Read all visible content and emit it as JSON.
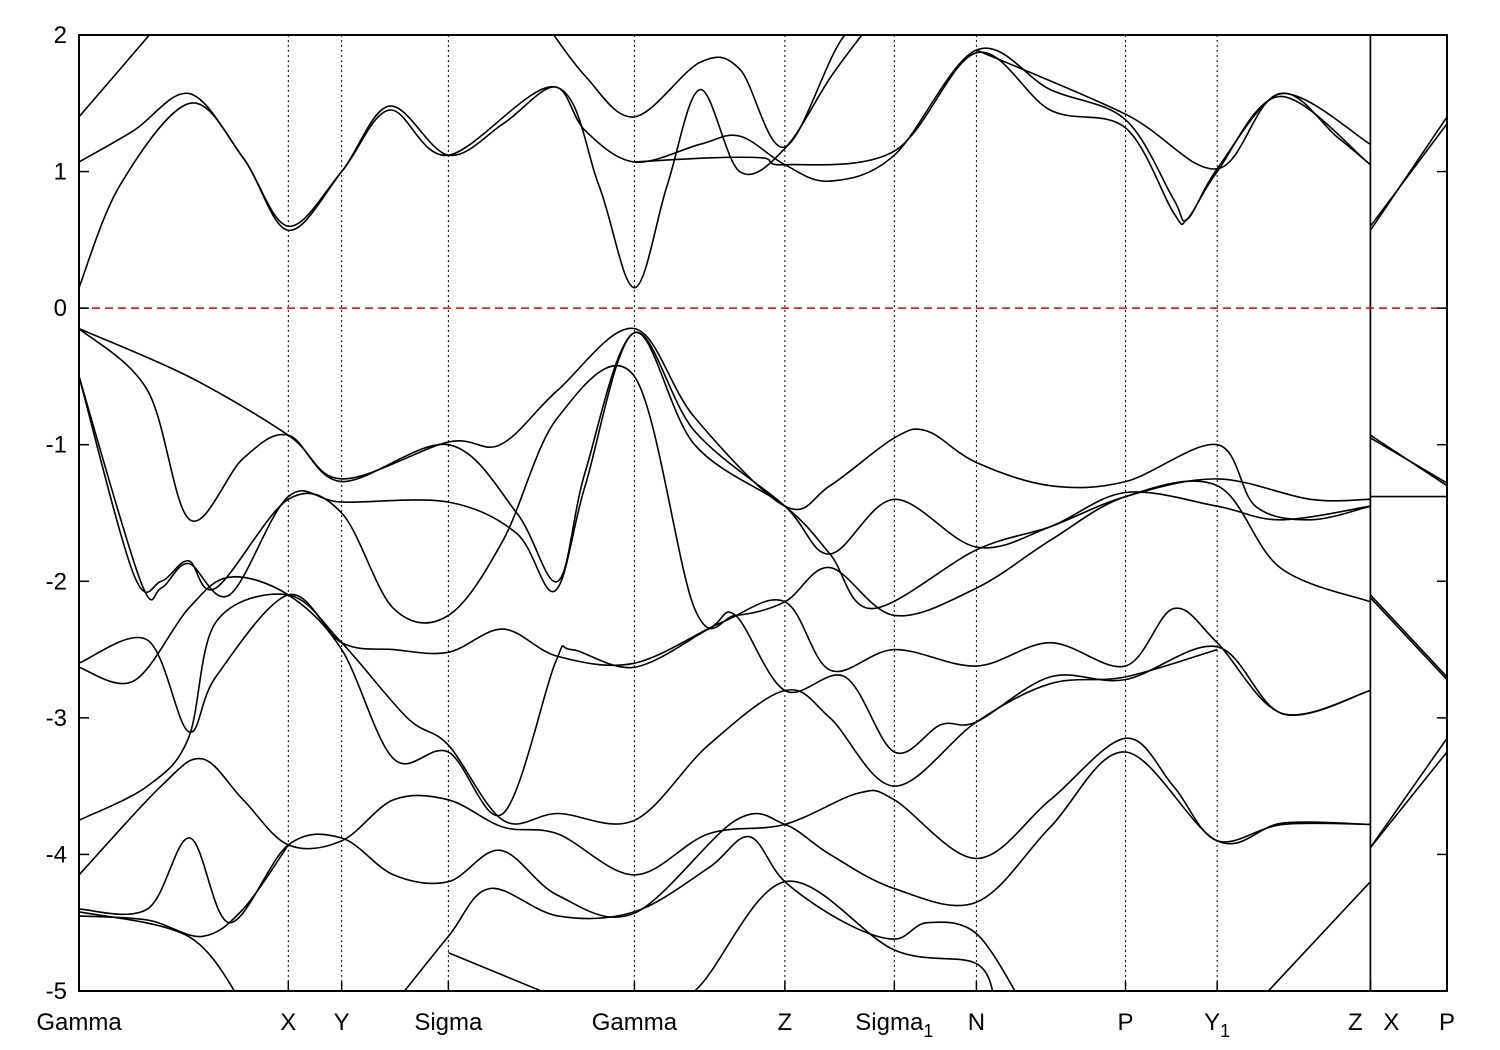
{
  "chart_data": {
    "type": "line",
    "title": "",
    "xlabel": "",
    "ylabel": "",
    "xlim": [
      0,
      10
    ],
    "ylim": [
      -5,
      2
    ],
    "yticks": [
      -5,
      -4,
      -3,
      -2,
      -1,
      0,
      1,
      2
    ],
    "ytick_labels": [
      "-5",
      "-4",
      "-3",
      "-2",
      "-1",
      "0",
      "1",
      "2"
    ],
    "grid": "dotted vertical lines at high-symmetry points",
    "fermi_level": {
      "value": 0,
      "color": "#e00000",
      "style": "dashed"
    },
    "band_color": "#000000",
    "kpoints": [
      {
        "k": 0,
        "label": "Gamma",
        "sub": ""
      },
      {
        "k": 1.53,
        "label": "X",
        "sub": ""
      },
      {
        "k": 1.92,
        "label": "Y",
        "sub": ""
      },
      {
        "k": 2.7,
        "label": "Sigma",
        "sub": ""
      },
      {
        "k": 4.06,
        "label": "Gamma",
        "sub": ""
      },
      {
        "k": 5.16,
        "label": "Z",
        "sub": ""
      },
      {
        "k": 5.96,
        "label": "Sigma",
        "sub": "1"
      },
      {
        "k": 6.56,
        "label": "N",
        "sub": ""
      },
      {
        "k": 7.65,
        "label": "P",
        "sub": ""
      },
      {
        "k": 8.32,
        "label": "Y",
        "sub": "1"
      },
      {
        "k": 9.44,
        "label": "Z",
        "sub": ""
      },
      {
        "k": 9.44,
        "label": "X",
        "sub": ""
      },
      {
        "k": 10,
        "label": "P",
        "sub": ""
      }
    ],
    "path_break_k": 9.44,
    "bands": [
      [
        [
          0,
          0.15
        ],
        [
          0.3,
          0.9
        ],
        [
          0.81,
          1.5
        ],
        [
          1.2,
          1.1
        ],
        [
          1.53,
          0.57
        ],
        [
          1.92,
          1.0
        ],
        [
          2.27,
          1.48
        ],
        [
          2.7,
          1.12
        ],
        [
          3.1,
          1.35
        ],
        [
          3.48,
          1.62
        ],
        [
          3.7,
          1.3
        ],
        [
          4.06,
          1.07
        ],
        [
          4.54,
          1.2
        ],
        [
          4.83,
          1.26
        ],
        [
          5.16,
          1.05
        ],
        [
          5.49,
          0.93
        ],
        [
          5.96,
          1.12
        ],
        [
          6.56,
          1.89
        ],
        [
          7.1,
          1.6
        ],
        [
          7.65,
          1.38
        ],
        [
          8.0,
          0.8
        ],
        [
          8.1,
          0.65
        ],
        [
          8.32,
          1.02
        ],
        [
          8.78,
          1.57
        ],
        [
          9.2,
          1.25
        ],
        [
          9.44,
          1.05
        ],
        null,
        [
          9.44,
          0.57
        ],
        [
          10,
          1.4
        ]
      ],
      [
        [
          0,
          1.07
        ],
        [
          0.4,
          1.3
        ],
        [
          0.81,
          1.57
        ],
        [
          1.2,
          1.1
        ],
        [
          1.53,
          0.6
        ],
        [
          1.92,
          1.0
        ],
        [
          2.27,
          1.45
        ],
        [
          2.7,
          1.12
        ],
        [
          3.48,
          1.62
        ],
        [
          3.8,
          0.9
        ],
        [
          4.06,
          0.15
        ],
        [
          4.3,
          0.9
        ],
        [
          4.54,
          1.6
        ],
        [
          4.83,
          1.0
        ],
        [
          5.16,
          1.17
        ],
        [
          5.5,
          1.7
        ],
        [
          5.8,
          2.1
        ]
      ],
      [
        [
          0,
          1.4
        ],
        [
          0.6,
          2.1
        ],
        null,
        [
          3.4,
          2.1
        ],
        [
          3.7,
          1.7
        ],
        [
          4.06,
          1.4
        ],
        [
          4.54,
          1.8
        ],
        [
          4.83,
          1.75
        ],
        [
          5.16,
          1.18
        ],
        [
          5.6,
          2.0
        ],
        [
          5.96,
          2.05
        ],
        null,
        [
          6.56,
          1.89
        ],
        [
          7.65,
          1.42
        ],
        [
          8.32,
          1.02
        ],
        [
          8.78,
          1.57
        ],
        [
          9.44,
          1.2
        ],
        null,
        [
          9.44,
          0.6
        ],
        [
          10,
          1.35
        ]
      ],
      [
        [
          4.06,
          1.07
        ],
        [
          4.6,
          1.1
        ],
        [
          5.0,
          1.1
        ],
        [
          5.16,
          1.05
        ],
        [
          5.96,
          1.15
        ],
        [
          6.56,
          1.87
        ],
        [
          7.1,
          1.45
        ],
        [
          7.65,
          1.32
        ],
        [
          8.0,
          0.7
        ],
        [
          8.1,
          0.65
        ],
        [
          8.32,
          1.0
        ],
        [
          8.78,
          1.55
        ],
        [
          9.44,
          1.05
        ]
      ],
      [
        [
          0,
          -0.15
        ],
        [
          0.8,
          -0.5
        ],
        [
          1.53,
          -0.93
        ],
        [
          1.92,
          -1.25
        ],
        [
          2.7,
          -0.98
        ],
        [
          3.08,
          -1.0
        ],
        [
          3.5,
          -0.6
        ],
        [
          4.06,
          -0.15
        ],
        [
          4.5,
          -0.8
        ],
        [
          5.16,
          -1.45
        ],
        [
          5.49,
          -1.3
        ],
        [
          5.96,
          -0.95
        ],
        [
          6.2,
          -0.9
        ],
        [
          6.56,
          -1.13
        ],
        [
          7.1,
          -1.3
        ],
        [
          7.65,
          -1.27
        ],
        [
          8.32,
          -1.0
        ],
        [
          8.6,
          -1.45
        ],
        [
          9.0,
          -1.55
        ],
        [
          9.44,
          -1.45
        ],
        null,
        [
          9.44,
          -0.93
        ],
        [
          10,
          -1.3
        ]
      ],
      [
        [
          0,
          -0.15
        ],
        [
          0.5,
          -0.6
        ],
        [
          0.81,
          -1.55
        ],
        [
          1.2,
          -1.1
        ],
        [
          1.53,
          -0.93
        ],
        [
          1.92,
          -1.27
        ],
        [
          2.7,
          -1.0
        ],
        [
          3.2,
          -1.5
        ],
        [
          3.5,
          -2.0
        ],
        [
          3.7,
          -1.2
        ],
        [
          4.06,
          -0.18
        ],
        [
          4.5,
          -0.9
        ],
        [
          5.16,
          -1.45
        ],
        [
          5.49,
          -1.8
        ],
        [
          5.96,
          -1.4
        ],
        [
          6.56,
          -1.75
        ],
        [
          7.1,
          -1.6
        ],
        [
          7.65,
          -1.35
        ],
        [
          8.32,
          -1.45
        ],
        [
          8.78,
          -1.55
        ],
        [
          9.44,
          -1.45
        ],
        null,
        [
          9.44,
          -1.38
        ],
        [
          10,
          -1.38
        ]
      ],
      [
        [
          0,
          -0.5
        ],
        [
          0.4,
          -1.95
        ],
        [
          0.6,
          -2.0
        ],
        [
          0.8,
          -1.85
        ],
        [
          1.0,
          -2.05
        ],
        [
          1.53,
          -1.4
        ],
        [
          1.92,
          -1.5
        ],
        [
          2.3,
          -2.2
        ],
        [
          2.7,
          -2.25
        ],
        [
          3.1,
          -1.7
        ],
        [
          3.5,
          -0.8
        ],
        [
          4.06,
          -0.5
        ],
        [
          4.5,
          -2.2
        ],
        [
          4.8,
          -2.25
        ],
        [
          5.16,
          -2.15
        ],
        [
          5.49,
          -1.9
        ],
        [
          5.96,
          -2.25
        ],
        [
          6.56,
          -2.05
        ],
        [
          7.1,
          -1.7
        ],
        [
          7.65,
          -1.38
        ],
        [
          8.32,
          -1.3
        ],
        [
          8.78,
          -1.9
        ],
        [
          9.44,
          -2.15
        ],
        null,
        [
          9.44,
          -2.1
        ],
        [
          10,
          -2.7
        ]
      ],
      [
        [
          0,
          -0.5
        ],
        [
          0.45,
          -2.0
        ],
        [
          0.6,
          -2.05
        ],
        [
          0.8,
          -1.87
        ],
        [
          1.1,
          -2.1
        ],
        [
          1.53,
          -1.38
        ],
        [
          1.92,
          -1.42
        ],
        [
          2.7,
          -1.42
        ],
        [
          3.2,
          -1.65
        ],
        [
          3.48,
          -2.07
        ],
        [
          3.7,
          -1.3
        ],
        [
          4.06,
          -0.18
        ],
        [
          4.5,
          -1.0
        ],
        [
          5.16,
          -1.45
        ],
        [
          5.49,
          -1.8
        ],
        [
          5.8,
          -2.2
        ],
        [
          6.56,
          -1.77
        ],
        [
          7.1,
          -1.6
        ],
        [
          7.65,
          -1.38
        ],
        [
          8.32,
          -1.25
        ],
        [
          9.0,
          -1.4
        ],
        [
          9.44,
          -1.4
        ],
        null,
        [
          9.44,
          -0.95
        ],
        [
          10,
          -1.28
        ]
      ],
      [
        [
          0,
          -2.6
        ],
        [
          0.5,
          -2.43
        ],
        [
          0.8,
          -3.1
        ],
        [
          1.0,
          -2.7
        ],
        [
          1.53,
          -2.1
        ],
        [
          1.92,
          -2.45
        ],
        [
          2.3,
          -2.5
        ],
        [
          2.7,
          -2.52
        ],
        [
          3.1,
          -2.35
        ],
        [
          3.5,
          -2.55
        ],
        [
          4.06,
          -2.6
        ],
        [
          4.7,
          -2.3
        ],
        [
          5.16,
          -2.15
        ],
        [
          5.49,
          -2.65
        ],
        [
          5.96,
          -2.5
        ],
        [
          6.56,
          -2.62
        ],
        [
          7.1,
          -2.45
        ],
        [
          7.65,
          -2.62
        ],
        [
          8.0,
          -2.2
        ],
        [
          8.32,
          -2.45
        ],
        [
          8.8,
          -2.97
        ],
        [
          9.44,
          -2.8
        ],
        null,
        [
          9.44,
          -2.12
        ],
        [
          10,
          -2.72
        ]
      ],
      [
        [
          0,
          -2.63
        ],
        [
          0.4,
          -2.73
        ],
        [
          0.8,
          -2.2
        ],
        [
          1.1,
          -1.97
        ],
        [
          1.53,
          -2.1
        ],
        [
          1.92,
          -2.5
        ],
        [
          2.3,
          -3.3
        ],
        [
          2.7,
          -3.25
        ],
        [
          3.1,
          -3.7
        ],
        [
          3.48,
          -2.6
        ],
        [
          3.6,
          -2.5
        ],
        [
          4.06,
          -2.63
        ],
        [
          4.6,
          -2.35
        ],
        [
          4.8,
          -2.25
        ],
        [
          5.16,
          -2.8
        ],
        [
          5.6,
          -2.7
        ],
        [
          5.96,
          -3.25
        ],
        [
          6.3,
          -3.05
        ],
        [
          6.56,
          -3.03
        ],
        [
          7.1,
          -2.7
        ],
        [
          7.65,
          -2.72
        ],
        [
          8.32,
          -2.48
        ],
        [
          8.8,
          -2.97
        ],
        [
          9.44,
          -2.8
        ]
      ],
      [
        [
          0,
          -3.75
        ],
        [
          0.5,
          -3.5
        ],
        [
          0.8,
          -3.15
        ],
        [
          1.0,
          -2.3
        ],
        [
          1.53,
          -2.1
        ],
        [
          1.92,
          -2.45
        ],
        [
          2.4,
          -3.0
        ],
        [
          2.7,
          -3.2
        ],
        [
          3.1,
          -3.75
        ],
        [
          3.5,
          -3.7
        ],
        [
          4.06,
          -3.75
        ],
        [
          4.6,
          -3.2
        ],
        [
          5.16,
          -2.8
        ],
        [
          5.49,
          -3.0
        ],
        [
          5.96,
          -3.5
        ],
        [
          6.56,
          -3.03
        ],
        [
          7.1,
          -2.75
        ],
        [
          7.65,
          -2.7
        ],
        [
          8.32,
          -2.5
        ]
      ],
      [
        [
          0,
          -4.15
        ],
        [
          0.6,
          -3.5
        ],
        [
          0.9,
          -3.3
        ],
        [
          1.2,
          -3.6
        ],
        [
          1.53,
          -3.93
        ],
        [
          1.92,
          -3.9
        ],
        [
          2.3,
          -3.6
        ],
        [
          2.7,
          -3.6
        ],
        [
          3.1,
          -3.8
        ],
        [
          3.5,
          -3.85
        ],
        [
          4.06,
          -4.15
        ],
        [
          4.6,
          -3.85
        ],
        [
          5.16,
          -3.78
        ],
        [
          5.7,
          -3.55
        ],
        [
          5.96,
          -3.6
        ],
        [
          6.56,
          -4.03
        ],
        [
          7.1,
          -3.6
        ],
        [
          7.65,
          -3.15
        ],
        [
          8.0,
          -3.5
        ],
        [
          8.32,
          -3.9
        ],
        [
          8.8,
          -3.78
        ],
        [
          9.44,
          -3.78
        ],
        null,
        [
          9.44,
          -3.95
        ],
        [
          10,
          -3.15
        ]
      ],
      [
        [
          0,
          -4.4
        ],
        [
          0.5,
          -4.4
        ],
        [
          0.81,
          -3.88
        ],
        [
          1.1,
          -4.5
        ],
        [
          1.53,
          -3.93
        ],
        [
          1.92,
          -3.88
        ],
        [
          2.3,
          -4.15
        ],
        [
          2.7,
          -4.2
        ],
        [
          3.08,
          -3.97
        ],
        [
          3.5,
          -4.3
        ],
        [
          4.06,
          -4.43
        ],
        [
          4.8,
          -3.75
        ],
        [
          5.16,
          -3.78
        ],
        [
          5.49,
          -4.0
        ],
        [
          5.96,
          -4.25
        ],
        [
          6.56,
          -4.35
        ],
        [
          7.1,
          -3.8
        ],
        [
          7.65,
          -3.25
        ],
        [
          8.32,
          -3.9
        ],
        [
          8.8,
          -3.77
        ],
        [
          9.44,
          -3.78
        ],
        null,
        [
          9.44,
          -3.95
        ],
        [
          10,
          -3.25
        ]
      ],
      [
        [
          0,
          -4.45
        ],
        [
          0.5,
          -4.48
        ],
        [
          0.9,
          -4.6
        ],
        [
          1.2,
          -4.4
        ],
        [
          1.53,
          -3.93
        ]
      ],
      [
        [
          0,
          -4.42
        ],
        [
          0.8,
          -4.6
        ],
        [
          1.2,
          -5.1
        ],
        null,
        [
          2.3,
          -5.1
        ],
        [
          2.7,
          -4.6
        ],
        [
          3.0,
          -4.25
        ],
        [
          3.5,
          -4.45
        ],
        [
          4.06,
          -4.42
        ],
        [
          4.6,
          -4.1
        ],
        [
          4.9,
          -3.87
        ],
        [
          5.16,
          -4.2
        ],
        [
          5.6,
          -4.5
        ],
        [
          5.96,
          -4.62
        ],
        [
          6.2,
          -4.5
        ],
        [
          6.56,
          -4.58
        ],
        [
          6.9,
          -5.1
        ]
      ],
      [
        [
          2.7,
          -4.72
        ],
        [
          3.5,
          -5.05
        ],
        null,
        [
          4.06,
          -5.1
        ],
        [
          4.5,
          -5.0
        ],
        [
          5.16,
          -4.2
        ],
        [
          5.96,
          -4.7
        ],
        [
          6.56,
          -4.8
        ],
        [
          6.7,
          -5.1
        ],
        null,
        [
          8.6,
          -5.1
        ],
        [
          9.44,
          -4.2
        ]
      ]
    ]
  }
}
